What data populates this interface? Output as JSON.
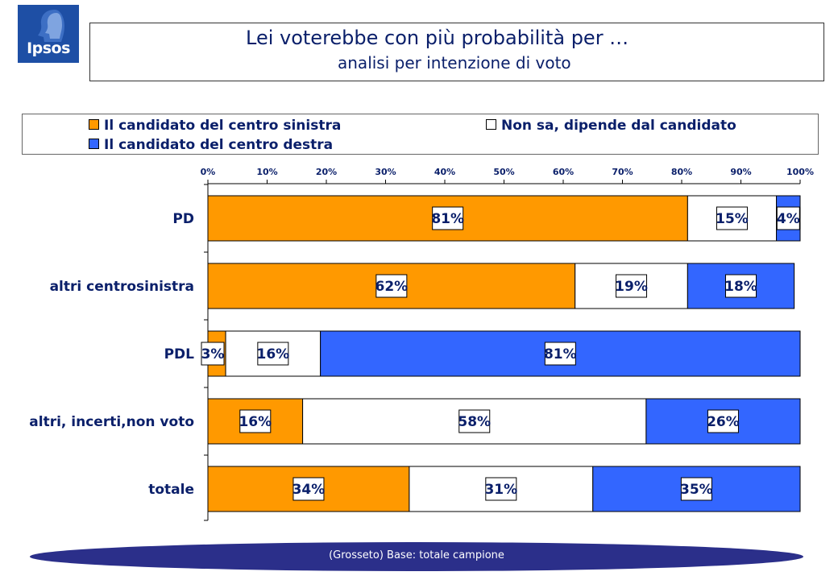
{
  "logo": {
    "text": "Ipsos",
    "icon": "profile-head-icon",
    "color": "#1e4fa5"
  },
  "title": "Lei voterebbe con più probabilità per …",
  "subtitle": "analisi per intenzione di voto",
  "footer": "(Grosseto) Base: totale campione",
  "colors": {
    "centro_sinistra": "#ff9900",
    "non_sa": "#ffffff",
    "centro_destra": "#3366ff",
    "text": "#0a1f6a",
    "footer_band": "#2b2f8a"
  },
  "chart_data": {
    "type": "bar",
    "orientation": "horizontal",
    "stacked": true,
    "categories": [
      "PD",
      "altri centrosinistra",
      "PDL",
      "altri, incerti,non voto",
      "totale"
    ],
    "series": [
      {
        "name": "Il candidato del centro sinistra",
        "values": [
          81,
          62,
          3,
          16,
          34
        ],
        "color": "#ff9900"
      },
      {
        "name": "Non sa, dipende dal candidato",
        "values": [
          15,
          19,
          16,
          58,
          31
        ],
        "color": "#ffffff"
      },
      {
        "name": "Il candidato del centro destra",
        "values": [
          4,
          18,
          81,
          26,
          35
        ],
        "color": "#3366ff"
      }
    ],
    "data_labels": [
      [
        "81%",
        "15%",
        "4%"
      ],
      [
        "62%",
        "19%",
        "18%"
      ],
      [
        "3%",
        "16%",
        "81%"
      ],
      [
        "16%",
        "58%",
        "26%"
      ],
      [
        "34%",
        "31%",
        "35%"
      ]
    ],
    "x_ticks": [
      "0%",
      "10%",
      "20%",
      "30%",
      "40%",
      "50%",
      "60%",
      "70%",
      "80%",
      "90%",
      "100%"
    ],
    "xlim": [
      0,
      100
    ],
    "axis_position": "top",
    "legend_position": "top",
    "grid": false
  }
}
